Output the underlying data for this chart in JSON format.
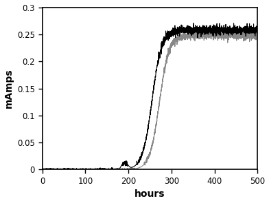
{
  "title": "",
  "xlabel": "hours",
  "ylabel": "mAmps",
  "xlim": [
    0,
    500
  ],
  "ylim": [
    0,
    0.3
  ],
  "xticks": [
    0,
    100,
    200,
    300,
    400,
    500
  ],
  "ytick_vals": [
    0,
    0.05,
    0.1,
    0.15,
    0.2,
    0.25,
    0.3
  ],
  "ytick_labels": [
    "0",
    "0.05",
    "0.1",
    "0.15",
    "0.2",
    "0.25",
    "0.3"
  ],
  "black_color": "#000000",
  "grey_color": "#888888",
  "linewidth": 0.8,
  "figsize": [
    3.92,
    2.95
  ],
  "dpi": 100,
  "black_plateau": 0.258,
  "grey_plateau": 0.248,
  "black_midpoint": 255,
  "black_steepness": 0.09,
  "grey_midpoint": 272,
  "grey_steepness": 0.09,
  "black_onset": 175,
  "grey_onset": 215,
  "noise_plateau_std": 0.004,
  "noise_rise_std": 0.002,
  "n_points": 3000
}
